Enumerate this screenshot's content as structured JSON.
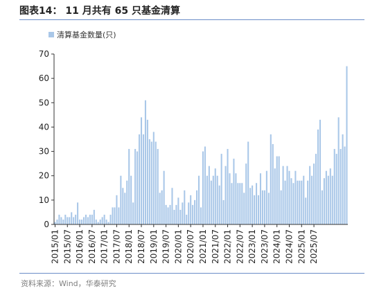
{
  "header": {
    "title": "图表14：  11 月共有 65 只基金清算"
  },
  "footer": {
    "source": "资料来源：Wind，华泰研究"
  },
  "colors": {
    "bar": "#a9c7e8",
    "accent": "#6a8cc7",
    "axis": "#333333"
  },
  "chart_data": {
    "type": "bar",
    "legend": {
      "label": "清算基金数量(只)",
      "position": "top-left"
    },
    "ylim": [
      0,
      70
    ],
    "yticks": [
      0,
      10,
      20,
      30,
      40,
      50,
      60,
      70
    ],
    "grid": false,
    "xtick_labels": [
      "2015/01",
      "2015/07",
      "2016/01",
      "2016/07",
      "2017/01",
      "2017/07",
      "2018/01",
      "2018/07",
      "2019/01",
      "2019/07",
      "2020/01",
      "2020/07",
      "2021/01",
      "2021/07",
      "2022/01",
      "2022/07",
      "2023/01",
      "2023/07",
      "2024/01",
      "2024/07",
      "2025/01",
      "2025/07"
    ],
    "start_month": "2015/01",
    "values": [
      1,
      2,
      4,
      3,
      2,
      4,
      3,
      3,
      5,
      3,
      4,
      9,
      2,
      2,
      3,
      4,
      3,
      4,
      4,
      6,
      2,
      1,
      2,
      3,
      4,
      2,
      1,
      4,
      7,
      7,
      12,
      7,
      20,
      15,
      13,
      18,
      31,
      20,
      9,
      31,
      30,
      37,
      44,
      37,
      51,
      43,
      35,
      34,
      38,
      34,
      31,
      13,
      14,
      22,
      8,
      7,
      8,
      15,
      6,
      8,
      11,
      6,
      9,
      14,
      4,
      9,
      12,
      8,
      10,
      14,
      20,
      7,
      30,
      32,
      20,
      24,
      18,
      20,
      23,
      20,
      16,
      29,
      10,
      24,
      31,
      21,
      17,
      27,
      21,
      17,
      17,
      17,
      13,
      25,
      34,
      15,
      16,
      12,
      17,
      12,
      21,
      14,
      14,
      22,
      13,
      37,
      33,
      23,
      28,
      28,
      14,
      24,
      18,
      24,
      22,
      19,
      17,
      22,
      18,
      18,
      18,
      20,
      11,
      18,
      24,
      20,
      25,
      29,
      39,
      43,
      14,
      19,
      22,
      20,
      23,
      20,
      31,
      29,
      44,
      31,
      37,
      32,
      65
    ]
  }
}
